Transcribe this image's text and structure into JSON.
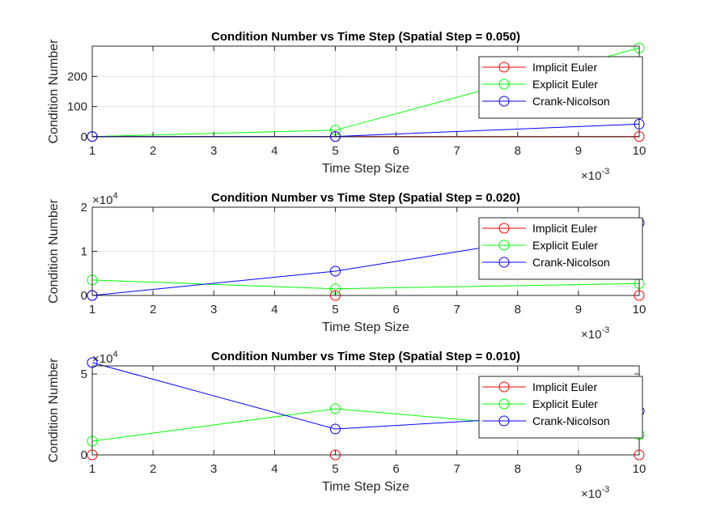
{
  "chart_data": [
    {
      "type": "line",
      "title": "Condition Number vs Time Step (Spatial Step = 0.050)",
      "xlabel": "Time Step Size",
      "ylabel": "Condition Number",
      "x_exponent_base": "×10",
      "x_exponent_power": "-3",
      "y_exponent_base": "",
      "y_exponent_power": "",
      "xlim": [
        1,
        10
      ],
      "ylim": [
        0,
        300
      ],
      "x_ticks": [
        1,
        2,
        3,
        4,
        5,
        6,
        7,
        8,
        9,
        10
      ],
      "x_tick_labels": [
        "1",
        "2",
        "3",
        "4",
        "5",
        "6",
        "7",
        "8",
        "9",
        "10"
      ],
      "y_ticks": [
        0,
        100,
        200
      ],
      "y_tick_labels": [
        "0",
        "100",
        "200"
      ],
      "x": [
        1,
        5,
        10
      ],
      "grid": true,
      "legend_position": "top-right",
      "series": [
        {
          "name": "Implicit Euler",
          "color": "#ff0000",
          "marker": "circle",
          "values": [
            1,
            1,
            1
          ]
        },
        {
          "name": "Explicit Euler",
          "color": "#00ff00",
          "marker": "circle",
          "values": [
            0.8,
            22,
            294
          ]
        },
        {
          "name": "Crank-Nicolson",
          "color": "#0000ff",
          "marker": "circle",
          "values": [
            1,
            1,
            42
          ]
        }
      ]
    },
    {
      "type": "line",
      "title": "Condition Number vs Time Step (Spatial Step = 0.020)",
      "xlabel": "Time Step Size",
      "ylabel": "Condition Number",
      "x_exponent_base": "×10",
      "x_exponent_power": "-3",
      "y_exponent_base": "×10",
      "y_exponent_power": "4",
      "xlim": [
        1,
        10
      ],
      "ylim": [
        0,
        2
      ],
      "x_ticks": [
        1,
        2,
        3,
        4,
        5,
        6,
        7,
        8,
        9,
        10
      ],
      "x_tick_labels": [
        "1",
        "2",
        "3",
        "4",
        "5",
        "6",
        "7",
        "8",
        "9",
        "10"
      ],
      "y_ticks": [
        0,
        1,
        2
      ],
      "y_tick_labels": [
        "0",
        "1",
        "2"
      ],
      "x": [
        1,
        5,
        10
      ],
      "grid": true,
      "legend_position": "top-right",
      "series": [
        {
          "name": "Implicit Euler",
          "color": "#ff0000",
          "marker": "circle",
          "values": [
            0.0001,
            0.0001,
            0.0001
          ]
        },
        {
          "name": "Explicit Euler",
          "color": "#00ff00",
          "marker": "circle",
          "values": [
            0.35,
            0.15,
            0.27
          ]
        },
        {
          "name": "Crank-Nicolson",
          "color": "#0000ff",
          "marker": "circle",
          "values": [
            0.0001,
            0.55,
            1.65
          ]
        }
      ]
    },
    {
      "type": "line",
      "title": "Condition Number vs Time Step (Spatial Step = 0.010)",
      "xlabel": "Time Step Size",
      "ylabel": "Condition Number",
      "x_exponent_base": "×10",
      "x_exponent_power": "-3",
      "y_exponent_base": "×10",
      "y_exponent_power": "4",
      "xlim": [
        1,
        10
      ],
      "ylim": [
        0,
        5.5
      ],
      "x_ticks": [
        1,
        2,
        3,
        4,
        5,
        6,
        7,
        8,
        9,
        10
      ],
      "x_tick_labels": [
        "1",
        "2",
        "3",
        "4",
        "5",
        "6",
        "7",
        "8",
        "9",
        "10"
      ],
      "y_ticks": [
        0,
        5
      ],
      "y_tick_labels": [
        "0",
        "5"
      ],
      "x": [
        1,
        5,
        10
      ],
      "grid": true,
      "legend_position": "top-right",
      "series": [
        {
          "name": "Implicit Euler",
          "color": "#ff0000",
          "marker": "circle",
          "values": [
            0.0003,
            0.0003,
            0.0003
          ]
        },
        {
          "name": "Explicit Euler",
          "color": "#00ff00",
          "marker": "circle",
          "values": [
            0.85,
            2.85,
            1.25
          ]
        },
        {
          "name": "Crank-Nicolson",
          "color": "#0000ff",
          "marker": "circle",
          "values": [
            5.7,
            1.6,
            2.7
          ]
        }
      ]
    }
  ]
}
